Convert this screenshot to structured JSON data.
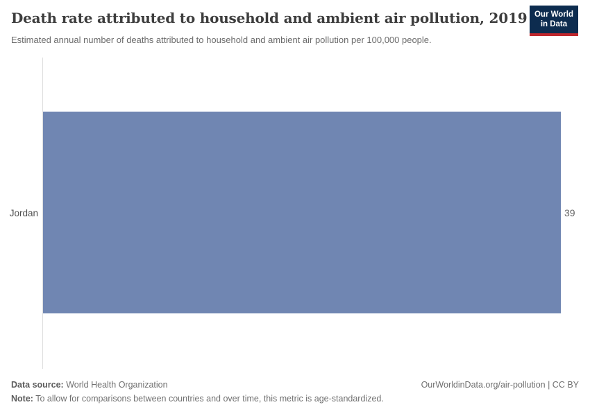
{
  "header": {
    "title": "Death rate attributed to household and ambient air pollution, 2019",
    "subtitle": "Estimated annual number of deaths attributed to household and ambient air pollution per 100,000 people.",
    "logo": {
      "line1": "Our World",
      "line2": "in Data"
    }
  },
  "chart_data": {
    "type": "bar",
    "orientation": "horizontal",
    "title": "Death rate attributed to household and ambient air pollution, 2019",
    "categories": [
      "Jordan"
    ],
    "values": [
      39
    ],
    "value_labels": [
      "39"
    ],
    "xlabel": "",
    "ylabel": "",
    "xlim": [
      0,
      39
    ],
    "grid": false,
    "legend": false
  },
  "footer": {
    "datasource_label": "Data source:",
    "datasource_value": " World Health Organization",
    "note_label": "Note:",
    "note_value": " To allow for comparisons between countries and over time, this metric is age-standardized.",
    "link": "OurWorldinData.org/air-pollution | CC BY"
  },
  "colors": {
    "bar": "#7086b2",
    "axis_line": "#dedede",
    "logo_navy": "#0d2c4f",
    "logo_red": "#c0272d"
  }
}
